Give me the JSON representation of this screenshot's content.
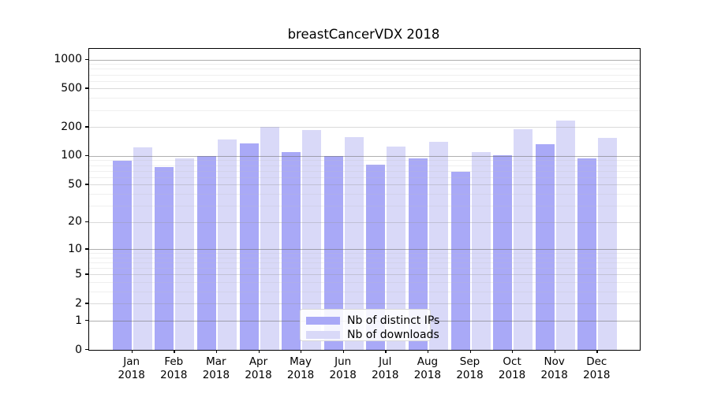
{
  "figure_title": "breastCancerVDX 2018",
  "chart_data": {
    "type": "bar",
    "title": "breastCancerVDX 2018",
    "categories": [
      "Jan",
      "Feb",
      "Mar",
      "Apr",
      "May",
      "Jun",
      "Jul",
      "Aug",
      "Sep",
      "Oct",
      "Nov",
      "Dec"
    ],
    "category_year": "2018",
    "series": [
      {
        "name": "Nb of distinct IPs",
        "color": "#a9a9f7",
        "values": [
          89,
          76,
          100,
          136,
          110,
          100,
          81,
          94,
          68,
          102,
          133,
          94
        ]
      },
      {
        "name": "Nb of downloads",
        "color": "#d9d9f8",
        "values": [
          122,
          95,
          148,
          200,
          187,
          158,
          126,
          141,
          110,
          188,
          232,
          155
        ]
      }
    ],
    "y_scale": "log10(value+1)",
    "y_ticks": [
      0,
      1,
      2,
      5,
      10,
      20,
      50,
      100,
      200,
      500,
      1000
    ],
    "y_minor_ticks": [
      3,
      4,
      6,
      7,
      8,
      9,
      30,
      40,
      60,
      70,
      80,
      90,
      300,
      400,
      600,
      700,
      800,
      900
    ],
    "ylim": [
      0,
      1100
    ],
    "grid": "horizontal",
    "legend_position": "lower center"
  },
  "legend_note": "legend shows one entry per series"
}
